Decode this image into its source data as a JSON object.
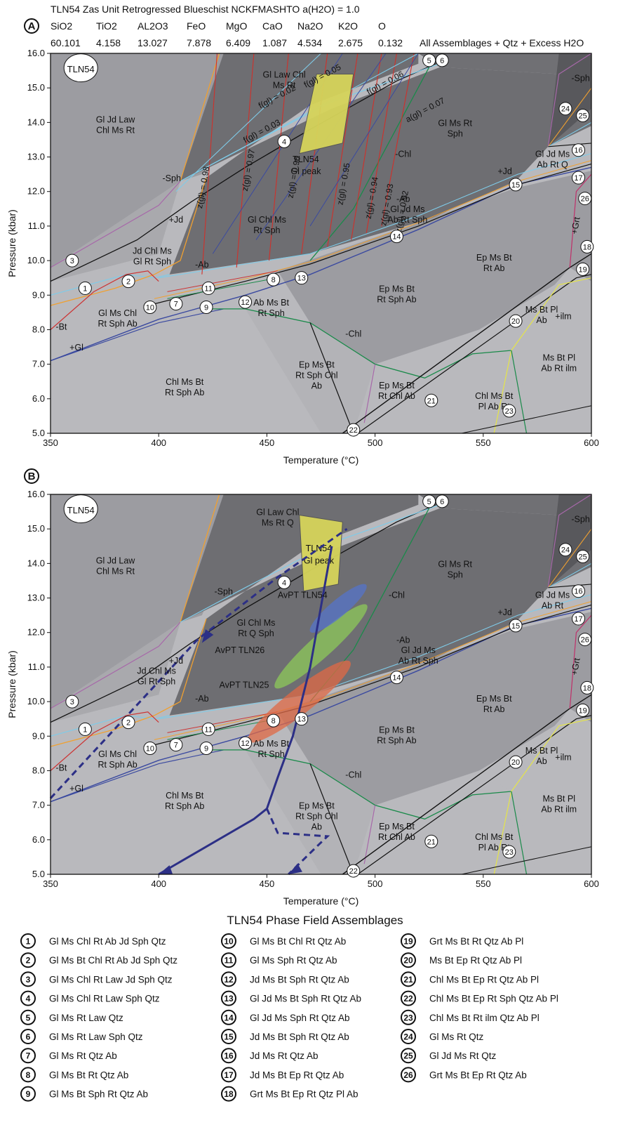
{
  "header": {
    "title": "TLN54 Zas Unit Retrogressed Blueschist NCKFMASHTO a(H2O) = 1.0",
    "composition": [
      {
        "oxide": "SiO2",
        "value": "60.101"
      },
      {
        "oxide": "TiO2",
        "value": "4.158"
      },
      {
        "oxide": "AL2O3",
        "value": "13.027"
      },
      {
        "oxide": "FeO",
        "value": "7.878"
      },
      {
        "oxide": "MgO",
        "value": "6.409"
      },
      {
        "oxide": "CaO",
        "value": "1.087"
      },
      {
        "oxide": "Na2O",
        "value": "4.534"
      },
      {
        "oxide": "K2O",
        "value": "2.675"
      },
      {
        "oxide": "O",
        "value": "0.132"
      }
    ],
    "subtitle": "All Assemblages + Qtz + Excess H2O"
  },
  "colors": {
    "field_light": "#b9b9bd",
    "field_mid": "#9c9ca1",
    "field_dark": "#6e6e72",
    "field_darker": "#58585c",
    "peak_box": "#d6d45a",
    "path": "#2c2f86",
    "avpt54": "#5574c9",
    "avpt26": "#8ec95a",
    "avpt25": "#e06a45"
  },
  "chart_data": [
    {
      "panel_label": "A",
      "type": "phase-diagram",
      "xlabel": "Temperature (°C)",
      "ylabel": "Pressure (kbar)",
      "xlim": [
        350,
        600
      ],
      "ylim": [
        5.0,
        16.0
      ],
      "xticks": [
        "350",
        "400",
        "450",
        "500",
        "550",
        "600"
      ],
      "yticks": [
        "5.0",
        "6.0",
        "7.0",
        "8.0",
        "9.0",
        "10.0",
        "11.0",
        "12.0",
        "13.0",
        "14.0",
        "15.0",
        "16.0"
      ],
      "sample_label": "TLN54",
      "field_labels": [
        {
          "text": "Gl Law Chl Ms Rt",
          "x": 458,
          "y": 15.3
        },
        {
          "text": "Gl Jd Law Chl Ms Rt",
          "x": 380,
          "y": 14.0
        },
        {
          "text": "Gl Ms Rt Sph",
          "x": 537,
          "y": 13.9
        },
        {
          "text": "Gl Chl Ms Rt Sph",
          "x": 450,
          "y": 11.1
        },
        {
          "text": "Jd Chl Ms Gl Rt Sph",
          "x": 397,
          "y": 10.2
        },
        {
          "text": "Gl Jd Ms Ab Rt Sph",
          "x": 515,
          "y": 11.4
        },
        {
          "text": "Gl Ms Chl Rt Sph Ab",
          "x": 381,
          "y": 8.4
        },
        {
          "text": "Ab Ms Bt Rt Sph",
          "x": 452,
          "y": 8.7
        },
        {
          "text": "Ep Ms Bt Rt Sph Ab",
          "x": 510,
          "y": 9.1
        },
        {
          "text": "Ep Ms Bt Rt Ab",
          "x": 555,
          "y": 10.0
        },
        {
          "text": "Chl Ms Bt Rt Sph Ab",
          "x": 412,
          "y": 6.4
        },
        {
          "text": "Ep Ms Bt Rt Sph Chl Ab",
          "x": 473,
          "y": 6.9
        },
        {
          "text": "Ep Ms Bt Rt Chl Ab",
          "x": 510,
          "y": 6.3
        },
        {
          "text": "Chl Ms Bt Pl Ab Rt",
          "x": 555,
          "y": 6.0
        },
        {
          "text": "Ms Bt Pl Ab",
          "x": 577,
          "y": 8.5
        },
        {
          "text": "Ms Bt Pl Ab Rt ilm",
          "x": 585,
          "y": 7.1
        },
        {
          "text": "Gl Jd Ms Ab Rt Q",
          "x": 582,
          "y": 13.0
        }
      ],
      "reaction_labels": [
        {
          "text": "-Sph",
          "x": 595,
          "y": 15.2
        },
        {
          "text": "-Sph",
          "x": 406,
          "y": 12.3
        },
        {
          "text": "+Jd",
          "x": 408,
          "y": 11.1
        },
        {
          "text": "+Jd",
          "x": 560,
          "y": 12.5
        },
        {
          "text": "-Ab",
          "x": 420,
          "y": 9.8
        },
        {
          "text": "-Ab",
          "x": 513,
          "y": 11.7
        },
        {
          "text": "-Bt",
          "x": 355,
          "y": 8.0
        },
        {
          "text": "+Gl",
          "x": 362,
          "y": 7.4
        },
        {
          "text": "-Chl",
          "x": 490,
          "y": 7.8
        },
        {
          "text": "-Chl",
          "x": 513,
          "y": 13.0
        },
        {
          "text": "+ilm",
          "x": 587,
          "y": 8.3
        },
        {
          "text": "+Grt",
          "x": 594,
          "y": 11.0
        }
      ],
      "isopleths": [
        {
          "text": "f(gl) = 0.02",
          "x": 447,
          "y": 14.4
        },
        {
          "text": "f(gl) = 0.03",
          "x": 440,
          "y": 13.4
        },
        {
          "text": "f(gl) = 0.05",
          "x": 468,
          "y": 15.0
        },
        {
          "text": "f(gl) = 0.06",
          "x": 497,
          "y": 14.8
        },
        {
          "text": "z(gl) = 0.98",
          "x": 420,
          "y": 11.5
        },
        {
          "text": "z(gl) = 0.97",
          "x": 441,
          "y": 12.0
        },
        {
          "text": "z(gl) = 0.96",
          "x": 462,
          "y": 11.8
        },
        {
          "text": "z(gl) = 0.95",
          "x": 485,
          "y": 11.6
        },
        {
          "text": "z(gl) = 0.94",
          "x": 498,
          "y": 11.2
        },
        {
          "text": "z(gl) = 0.93",
          "x": 505,
          "y": 11.0
        },
        {
          "text": "z(gl) = 0.92",
          "x": 512,
          "y": 10.8
        },
        {
          "text": "a(gl) = 0.07",
          "x": 515,
          "y": 14.0
        }
      ],
      "peak_label": "TLN54 Gl peak",
      "field_numbers": [
        {
          "n": "1",
          "x": 366,
          "y": 9.2
        },
        {
          "n": "2",
          "x": 386,
          "y": 9.4
        },
        {
          "n": "3",
          "x": 360,
          "y": 10.0
        },
        {
          "n": "4",
          "x": 458,
          "y": 13.45
        },
        {
          "n": "5",
          "x": 525,
          "y": 15.8
        },
        {
          "n": "6",
          "x": 531,
          "y": 15.8
        },
        {
          "n": "7",
          "x": 408,
          "y": 8.75
        },
        {
          "n": "8",
          "x": 453,
          "y": 9.45
        },
        {
          "n": "9",
          "x": 422,
          "y": 8.65
        },
        {
          "n": "10",
          "x": 396,
          "y": 8.65
        },
        {
          "n": "11",
          "x": 423,
          "y": 9.2
        },
        {
          "n": "12",
          "x": 440,
          "y": 8.8
        },
        {
          "n": "13",
          "x": 466,
          "y": 9.5
        },
        {
          "n": "14",
          "x": 510,
          "y": 10.7
        },
        {
          "n": "15",
          "x": 565,
          "y": 12.2
        },
        {
          "n": "16",
          "x": 594,
          "y": 13.2
        },
        {
          "n": "17",
          "x": 594,
          "y": 12.4
        },
        {
          "n": "18",
          "x": 598,
          "y": 10.4
        },
        {
          "n": "19",
          "x": 596,
          "y": 9.75
        },
        {
          "n": "20",
          "x": 565,
          "y": 8.25
        },
        {
          "n": "21",
          "x": 526,
          "y": 5.95
        },
        {
          "n": "22",
          "x": 490,
          "y": 5.1
        },
        {
          "n": "23",
          "x": 562,
          "y": 5.65
        },
        {
          "n": "24",
          "x": 588,
          "y": 14.4
        },
        {
          "n": "25",
          "x": 596,
          "y": 14.2
        },
        {
          "n": "26",
          "x": 597,
          "y": 11.8
        }
      ]
    },
    {
      "panel_label": "B",
      "type": "phase-diagram",
      "xlabel": "Temperature (°C)",
      "ylabel": "Pressure (kbar)",
      "xlim": [
        350,
        600
      ],
      "ylim": [
        5.0,
        16.0
      ],
      "xticks": [
        "350",
        "400",
        "450",
        "500",
        "550",
        "600"
      ],
      "yticks": [
        "5.0",
        "6.0",
        "7.0",
        "8.0",
        "9.0",
        "10.0",
        "11.0",
        "12.0",
        "13.0",
        "14.0",
        "15.0",
        "16.0"
      ],
      "sample_label": "TLN54",
      "field_labels": [
        {
          "text": "Gl Law Chl Ms Rt Q",
          "x": 455,
          "y": 15.4
        },
        {
          "text": "Gl Jd Law Chl Ms Rt",
          "x": 380,
          "y": 14.0
        },
        {
          "text": "Gl Ms Rt Sph",
          "x": 537,
          "y": 13.9
        },
        {
          "text": "Gl Chl Ms Rt Q Sph",
          "x": 445,
          "y": 12.2
        },
        {
          "text": "Jd Chl Ms Gl Rt Sph",
          "x": 399,
          "y": 10.8
        },
        {
          "text": "Gl Jd Ms Ab Rt Sph",
          "x": 520,
          "y": 11.4
        },
        {
          "text": "Gl Ms Chl Rt Sph Ab",
          "x": 381,
          "y": 8.4
        },
        {
          "text": "Ab Ms Bt Rt Sph",
          "x": 452,
          "y": 8.7
        },
        {
          "text": "Ep Ms Bt Rt Sph Ab",
          "x": 510,
          "y": 9.1
        },
        {
          "text": "Ep Ms Bt Rt Ab",
          "x": 555,
          "y": 10.0
        },
        {
          "text": "Chl Ms Bt Rt Sph Ab",
          "x": 412,
          "y": 7.2
        },
        {
          "text": "Ep Ms Bt Rt Sph Chl Ab",
          "x": 473,
          "y": 6.9
        },
        {
          "text": "Ep Ms Bt Rt Chl Ab",
          "x": 510,
          "y": 6.3
        },
        {
          "text": "Chl Ms Bt Pl Ab Rt",
          "x": 555,
          "y": 6.0
        },
        {
          "text": "Ms Bt Pl Ab",
          "x": 577,
          "y": 8.5
        },
        {
          "text": "Ms Bt Pl Ab Rt ilm",
          "x": 585,
          "y": 7.1
        },
        {
          "text": "Gl Jd Ms Ab Rt",
          "x": 582,
          "y": 13.0
        }
      ],
      "reaction_labels": [
        {
          "text": "-Sph",
          "x": 595,
          "y": 15.2
        },
        {
          "text": "-Sph",
          "x": 430,
          "y": 13.1
        },
        {
          "text": "+Jd",
          "x": 408,
          "y": 11.1
        },
        {
          "text": "+Jd",
          "x": 560,
          "y": 12.5
        },
        {
          "text": "-Ab",
          "x": 420,
          "y": 10.0
        },
        {
          "text": "-Ab",
          "x": 513,
          "y": 11.7
        },
        {
          "text": "-Bt",
          "x": 355,
          "y": 8.0
        },
        {
          "text": "+Gl",
          "x": 362,
          "y": 7.4
        },
        {
          "text": "-Chl",
          "x": 490,
          "y": 7.8
        },
        {
          "text": "-Chl",
          "x": 510,
          "y": 13.0
        },
        {
          "text": "+ilm",
          "x": 587,
          "y": 8.3
        },
        {
          "text": "+Grt",
          "x": 594,
          "y": 11.0
        }
      ],
      "peak_label": "TLN54 Gl peak",
      "avpt": [
        {
          "label": "AvPT TLN54",
          "color": "#5574c9",
          "points": [
            [
              470,
              11.8
            ],
            [
              496,
              13.6
            ],
            [
              480,
              12.7
            ]
          ]
        },
        {
          "label": "AvPT TLN26",
          "color": "#8ec95a",
          "points": [
            [
              430,
              9.2
            ],
            [
              518,
              14.3
            ],
            [
              455,
              10.8
            ]
          ]
        },
        {
          "label": "AvPT TLN25",
          "color": "#e06a45",
          "points": [
            [
              423,
              7.8
            ],
            [
              506,
              12.4
            ],
            [
              445,
              9.3
            ]
          ]
        }
      ],
      "path_solid": [
        [
          480,
          14.5
        ],
        [
          470,
          11.0
        ],
        [
          462,
          9.0
        ],
        [
          455,
          7.8
        ],
        [
          450,
          6.9
        ],
        [
          444,
          6.6
        ],
        [
          400,
          5.0
        ]
      ],
      "path_dashed": [
        [
          350,
          7.2
        ],
        [
          418,
          11.8
        ],
        [
          455,
          13.6
        ],
        [
          487,
          15.0
        ]
      ],
      "path_dashed2": [
        [
          450,
          6.9
        ],
        [
          455,
          6.2
        ],
        [
          478,
          6.1
        ],
        [
          473,
          5.8
        ],
        [
          460,
          5.0
        ]
      ],
      "field_numbers": [
        {
          "n": "1",
          "x": 366,
          "y": 9.2
        },
        {
          "n": "2",
          "x": 386,
          "y": 9.4
        },
        {
          "n": "3",
          "x": 360,
          "y": 10.0
        },
        {
          "n": "4",
          "x": 458,
          "y": 13.45
        },
        {
          "n": "5",
          "x": 525,
          "y": 15.8
        },
        {
          "n": "6",
          "x": 531,
          "y": 15.8
        },
        {
          "n": "7",
          "x": 408,
          "y": 8.75
        },
        {
          "n": "8",
          "x": 453,
          "y": 9.45
        },
        {
          "n": "9",
          "x": 422,
          "y": 8.65
        },
        {
          "n": "10",
          "x": 396,
          "y": 8.65
        },
        {
          "n": "11",
          "x": 423,
          "y": 9.2
        },
        {
          "n": "12",
          "x": 440,
          "y": 8.8
        },
        {
          "n": "13",
          "x": 466,
          "y": 9.5
        },
        {
          "n": "14",
          "x": 510,
          "y": 10.7
        },
        {
          "n": "15",
          "x": 565,
          "y": 12.2
        },
        {
          "n": "16",
          "x": 594,
          "y": 13.2
        },
        {
          "n": "17",
          "x": 594,
          "y": 12.4
        },
        {
          "n": "18",
          "x": 598,
          "y": 10.4
        },
        {
          "n": "19",
          "x": 596,
          "y": 9.75
        },
        {
          "n": "20",
          "x": 565,
          "y": 8.25
        },
        {
          "n": "21",
          "x": 526,
          "y": 5.95
        },
        {
          "n": "22",
          "x": 490,
          "y": 5.1
        },
        {
          "n": "23",
          "x": 562,
          "y": 5.65
        },
        {
          "n": "24",
          "x": 588,
          "y": 14.4
        },
        {
          "n": "25",
          "x": 596,
          "y": 14.2
        },
        {
          "n": "26",
          "x": 597,
          "y": 11.8
        }
      ]
    }
  ],
  "legend": {
    "title": "TLN54 Phase Field Assemblages",
    "items": [
      {
        "n": "1",
        "text": "Gl Ms Chl Rt Ab Jd Sph Qtz"
      },
      {
        "n": "2",
        "text": "Gl Ms Bt Chl Rt Ab Jd Sph Qtz"
      },
      {
        "n": "3",
        "text": "Gl Ms Chl Rt Law Jd Sph Qtz"
      },
      {
        "n": "4",
        "text": "Gl Ms Chl Rt Law Sph Qtz"
      },
      {
        "n": "5",
        "text": "Gl Ms Rt Law Qtz"
      },
      {
        "n": "6",
        "text": "Gl Ms Rt Law Sph Qtz"
      },
      {
        "n": "7",
        "text": "Gl Ms Rt Qtz Ab"
      },
      {
        "n": "8",
        "text": "Gl Ms Bt Rt Qtz Ab"
      },
      {
        "n": "9",
        "text": "Gl Ms Bt Sph Rt Qtz Ab"
      },
      {
        "n": "10",
        "text": "Gl Ms Bt Chl Rt Qtz Ab"
      },
      {
        "n": "11",
        "text": "Gl Ms Sph Rt Qtz Ab"
      },
      {
        "n": "12",
        "text": "Jd Ms Bt Sph Rt Qtz Ab"
      },
      {
        "n": "13",
        "text": "Gl Jd Ms Bt Sph Rt Qtz Ab"
      },
      {
        "n": "14",
        "text": "Gl Jd Ms Sph Rt Qtz Ab"
      },
      {
        "n": "15",
        "text": "Jd Ms Bt Sph Rt Qtz Ab"
      },
      {
        "n": "16",
        "text": "Jd Ms Rt Qtz Ab"
      },
      {
        "n": "17",
        "text": "Jd Ms Bt Ep Rt Qtz Ab"
      },
      {
        "n": "18",
        "text": "Grt Ms Bt Ep Rt Qtz Pl Ab"
      },
      {
        "n": "19",
        "text": "Grt Ms Bt Rt Qtz Ab Pl"
      },
      {
        "n": "20",
        "text": "Ms Bt Ep Rt Qtz Ab Pl"
      },
      {
        "n": "21",
        "text": "Chl Ms Bt Ep Rt Qtz Ab Pl"
      },
      {
        "n": "22",
        "text": "Chl Ms Bt Ep Rt Sph Qtz Ab Pl"
      },
      {
        "n": "23",
        "text": "Chl Ms Bt Rt ilm Qtz Ab Pl"
      },
      {
        "n": "24",
        "text": "Gl Ms Rt Qtz"
      },
      {
        "n": "25",
        "text": "Gl Jd Ms Rt Qtz"
      },
      {
        "n": "26",
        "text": "Grt Ms Bt Ep Rt Qtz Ab"
      }
    ]
  }
}
